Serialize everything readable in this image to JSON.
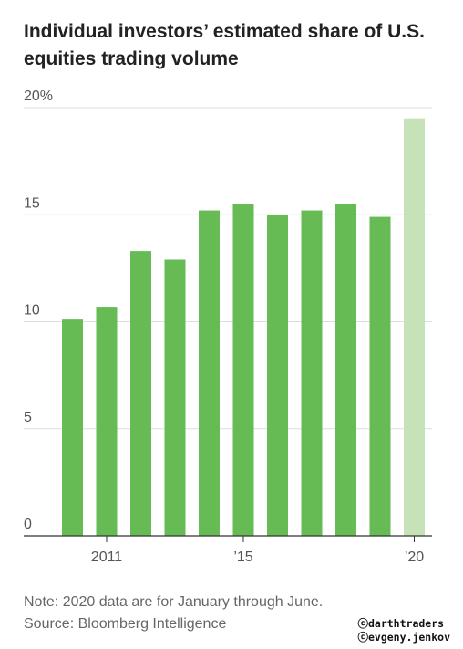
{
  "chart_data": {
    "type": "bar",
    "title": "Individual investors’ estimated share of U.S. equities trading volume",
    "xlabel": "",
    "ylabel": "",
    "categories": [
      "2010",
      "2011",
      "2012",
      "2013",
      "2014",
      "2015",
      "2016",
      "2017",
      "2018",
      "2019",
      "2020"
    ],
    "x_tick_labels": [
      {
        "category": "2011",
        "label": "2011"
      },
      {
        "category": "2015",
        "label": "’15"
      },
      {
        "category": "2020",
        "label": "’20"
      }
    ],
    "y_ticks": [
      0,
      5,
      10,
      15,
      20
    ],
    "y_tick_labels": [
      "0",
      "5",
      "10",
      "15",
      "20%"
    ],
    "ylim": [
      0,
      20
    ],
    "values": [
      10.1,
      10.7,
      13.3,
      12.9,
      15.2,
      15.5,
      15.0,
      15.2,
      15.5,
      14.9,
      19.5
    ],
    "colors": {
      "bar": "#66bb55",
      "bar_highlight": "#c6e2b8",
      "grid": "#dddddd",
      "axis": "#333333"
    },
    "highlight_category": "2020",
    "grid": true,
    "legend": "none"
  },
  "notes": {
    "note": "Note: 2020 data are for January through June.",
    "source": "Source: Bloomberg Intelligence"
  },
  "credits": {
    "line1": "ⓒdarthtraders",
    "line2": "ⓒevgeny.jenkov"
  }
}
